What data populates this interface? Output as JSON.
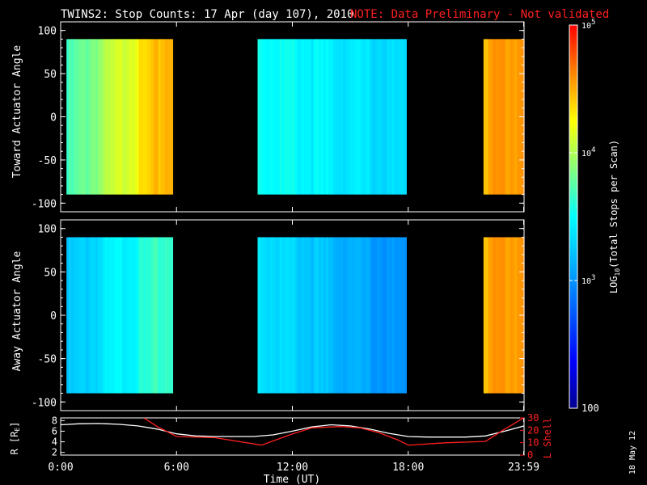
{
  "header": {
    "title": "TWINS2: Stop Counts: 17 Apr (day 107), 2010",
    "note": "NOTE: Data Preliminary - Not validated"
  },
  "side_date": "18 May 12",
  "colors": {
    "background": "#000000",
    "axes": "#ffffff",
    "note": "#ff2020",
    "r_line": "#ffffff",
    "l_shell_line": "#ff2020"
  },
  "chart_data": [
    {
      "type": "heatmap",
      "panel": "top",
      "ylabel": "Toward Actuator Angle",
      "xlim": [
        0,
        24
      ],
      "ylim": [
        -110,
        110
      ],
      "yticks": [
        100,
        50,
        0,
        -50,
        -100
      ],
      "data_angle_range": [
        -90,
        90
      ],
      "segments": [
        {
          "start_hr": 0.3,
          "end_hr": 5.8,
          "log_counts_start": 3.65,
          "log_counts_end": 4.55
        },
        {
          "start_hr": 10.2,
          "end_hr": 17.9,
          "log_counts_start": 3.55,
          "log_counts_end": 3.3
        },
        {
          "start_hr": 21.9,
          "end_hr": 24.0,
          "log_counts_start": 4.5,
          "log_counts_end": 4.6
        }
      ]
    },
    {
      "type": "heatmap",
      "panel": "middle",
      "ylabel": "Away Actuator Angle",
      "xlim": [
        0,
        24
      ],
      "ylim": [
        -110,
        110
      ],
      "yticks": [
        100,
        50,
        0,
        -50,
        -100
      ],
      "data_angle_range": [
        -90,
        90
      ],
      "segments": [
        {
          "start_hr": 0.3,
          "end_hr": 5.8,
          "log_counts_start": 3.2,
          "log_counts_end": 3.7
        },
        {
          "start_hr": 10.2,
          "end_hr": 17.9,
          "log_counts_start": 3.4,
          "log_counts_end": 2.95
        },
        {
          "start_hr": 21.9,
          "end_hr": 24.0,
          "log_counts_start": 4.5,
          "log_counts_end": 4.6
        }
      ]
    },
    {
      "type": "line",
      "panel": "bottom",
      "ylabel_left": "R [R",
      "ylabel_left_sub": "E",
      "ylabel_left_close": "]",
      "ylabel_right": "L Shell",
      "xlabel": "Time (UT)",
      "xticks": [
        "0:00",
        "6:00",
        "12:00",
        "18:00",
        "23:59"
      ],
      "xtick_hours": [
        0,
        6,
        12,
        18,
        23.98
      ],
      "ylim_left": [
        1.5,
        8.5
      ],
      "yticks_left": [
        2,
        4,
        6,
        8
      ],
      "ylim_right": [
        0,
        30
      ],
      "yticks_right": [
        0,
        10,
        20,
        30
      ],
      "series": [
        {
          "axis": "left",
          "x": [
            0,
            1,
            2,
            3,
            4,
            5,
            6,
            7,
            8,
            9,
            10,
            11,
            12,
            13,
            14,
            15,
            16,
            17,
            18,
            19,
            20,
            21,
            22,
            23,
            24
          ],
          "y": [
            7.2,
            7.4,
            7.45,
            7.3,
            7.0,
            6.4,
            5.5,
            5.1,
            5.0,
            5.0,
            5.0,
            5.3,
            6.0,
            6.8,
            7.2,
            7.0,
            6.4,
            5.6,
            5.0,
            4.9,
            4.9,
            4.9,
            5.1,
            6.0,
            7.0
          ]
        },
        {
          "axis": "right",
          "x": [
            4.3,
            5.0,
            6.0,
            8.0,
            10.4,
            12.0,
            13.0,
            14.5,
            15.5,
            16.5,
            17.5,
            18.0,
            20.0,
            22.0,
            22.9,
            23.98
          ],
          "y": [
            30,
            23,
            15,
            14,
            8,
            17,
            22,
            23,
            22,
            18,
            12,
            8,
            10,
            11,
            20,
            30
          ]
        }
      ]
    },
    {
      "type": "heatmap",
      "panel": "colorbar",
      "label_log": "LOG",
      "label_sub": "10",
      "label_rest": "(Total Stops per Scan)",
      "range": [
        100,
        100000
      ],
      "ticks": [
        {
          "log": 5,
          "base": "10",
          "exp": "5"
        },
        {
          "log": 4,
          "base": "10",
          "exp": "4"
        },
        {
          "log": 3,
          "base": "10",
          "exp": "3"
        },
        {
          "log": 2,
          "base": "100",
          "exp": ""
        }
      ]
    }
  ]
}
